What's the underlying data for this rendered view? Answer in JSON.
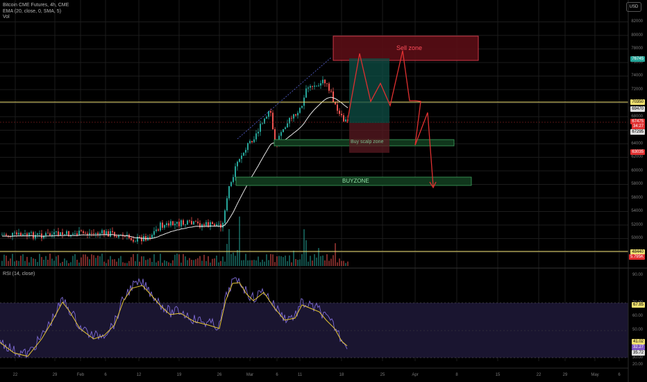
{
  "header": {
    "symbol_line": "Bitcoin CME Futures, 4h, CME",
    "ema_line": "EMA (20, close, 0, SMA, 5)",
    "vol_line": "Vol",
    "currency_button": "USD"
  },
  "rsi_panel": {
    "title": "RSI (14, close)"
  },
  "zones": {
    "sell": "Sell zone",
    "buy_scalp": "Buy scalp zone",
    "buy": "BUYZONE"
  },
  "price_axis": {
    "ticks": [
      "82000",
      "80000",
      "78000",
      "76000",
      "74000",
      "72000",
      "70000",
      "68000",
      "66000",
      "64000",
      "62000",
      "60000",
      "58000",
      "56000",
      "54000",
      "52000",
      "50000",
      "48000"
    ],
    "tags": [
      {
        "text": "76745",
        "bg": "#26a69a",
        "fg": "#ffffff"
      },
      {
        "text": "70350",
        "bg": "#f0e070",
        "fg": "#000000"
      },
      {
        "text": "69470",
        "bg": "#dddddd",
        "fg": "#000000"
      },
      {
        "text": "67475",
        "bg": "#e03030",
        "fg": "#ffffff"
      },
      {
        "text": "34:27",
        "bg": "#e03030",
        "fg": "#ffffff"
      },
      {
        "text": "67295",
        "bg": "#dddddd",
        "fg": "#000000"
      },
      {
        "text": "63035",
        "bg": "#e03030",
        "fg": "#ffffff"
      },
      {
        "text": "48440",
        "bg": "#f0e070",
        "fg": "#000000"
      },
      {
        "text": "5.795K",
        "bg": "#e03030",
        "fg": "#ffffff"
      }
    ]
  },
  "rsi_axis": {
    "ticks": [
      "90.00",
      "70.00",
      "60.00",
      "50.00",
      "40.00",
      "30.00",
      "20.00"
    ],
    "tags": [
      {
        "text": "67.85",
        "bg": "#f0e070",
        "fg": "#000000"
      },
      {
        "text": "41.02",
        "bg": "#f0e070",
        "fg": "#000000"
      },
      {
        "text": "32.27",
        "bg": "#7e57c2",
        "fg": "#ffffff"
      },
      {
        "text": "35.72",
        "bg": "#dddddd",
        "fg": "#000000"
      }
    ]
  },
  "time_axis": {
    "labels": [
      "22",
      "29",
      "Feb",
      "6",
      "12",
      "19",
      "26",
      "Mar",
      "6",
      "11",
      "18",
      "25",
      "Apr",
      "8",
      "15",
      "22",
      "29",
      "May",
      "6"
    ]
  },
  "colors": {
    "up": "#26a69a",
    "down": "#ef5350",
    "ema": "#e8e8e8",
    "rsi": "#7e6bd6",
    "rsi_ma": "#e6c634",
    "level": "#f0e070",
    "forecast": "#e03030",
    "sell_zone_fill": "#5a0e16",
    "buy_zone_fill": "#10361c",
    "grid": "#1c1c1c"
  }
}
